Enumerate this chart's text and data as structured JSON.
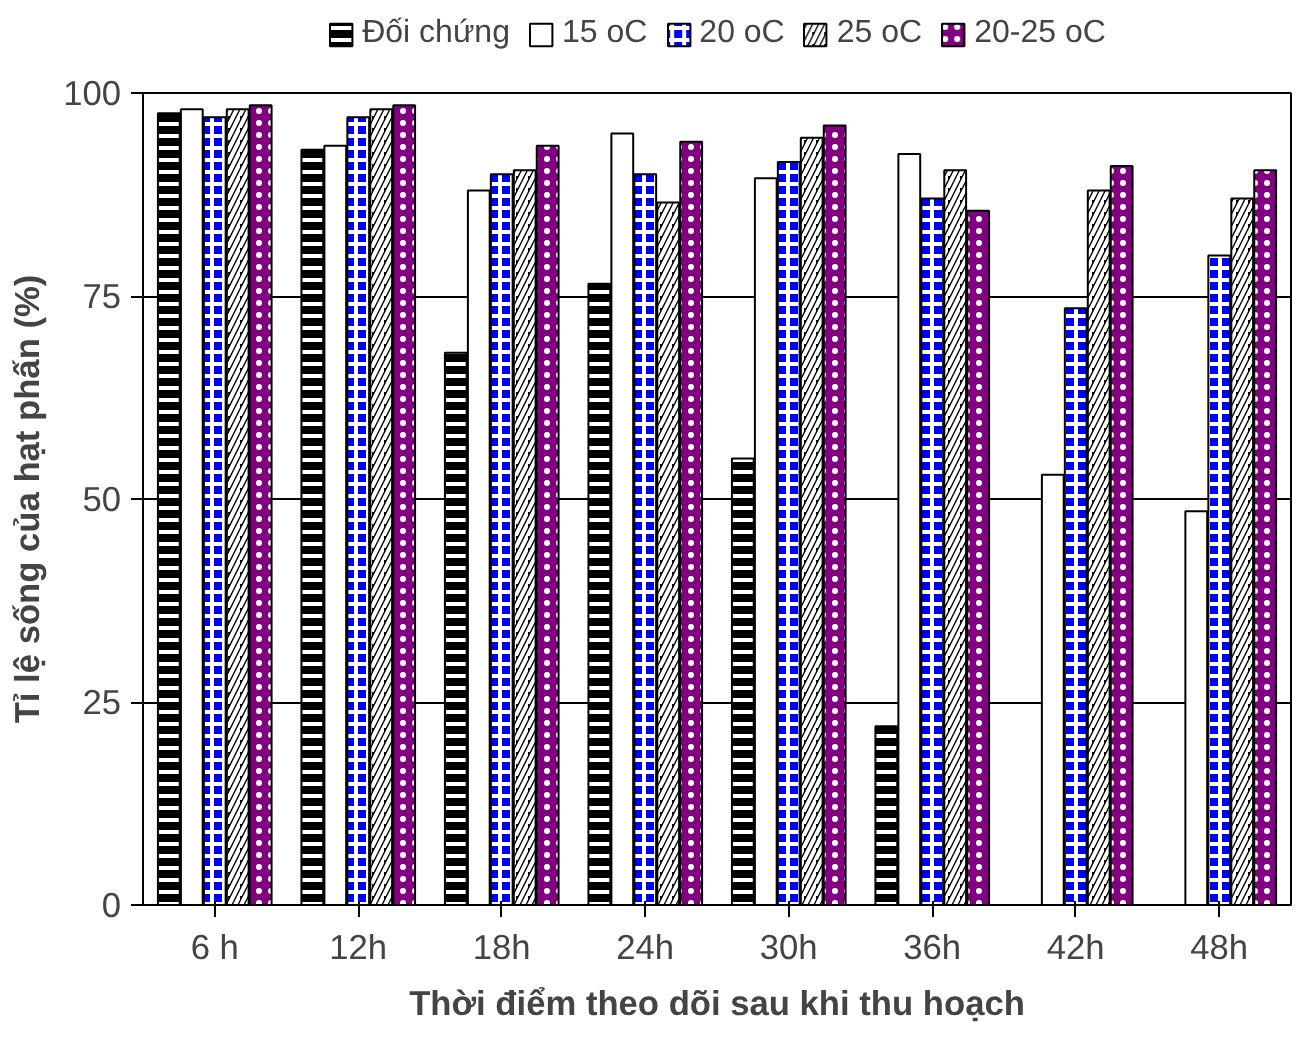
{
  "chart_data": {
    "type": "bar",
    "xlabel": "Thời điểm theo dõi sau khi thu hoạch",
    "ylabel": "Tỉ lệ sống của hạt phấn (%)",
    "categories": [
      "6 h",
      "12h",
      "18h",
      "24h",
      "30h",
      "36h",
      "42h",
      "48h"
    ],
    "series": [
      {
        "name": "Đối chứng",
        "color": "#000000",
        "values": [
          97.5,
          93,
          68,
          76.5,
          55,
          22,
          null,
          null
        ]
      },
      {
        "name": "15 oC",
        "color": "#ffffff",
        "values": [
          98,
          93.5,
          88,
          95,
          89.5,
          92.5,
          53,
          48.5
        ]
      },
      {
        "name": "20 oC",
        "color": "#0000ff",
        "values": [
          97,
          97,
          90,
          90,
          91.5,
          87,
          73.5,
          80
        ]
      },
      {
        "name": "25 oC",
        "color": "#000000",
        "values": [
          98,
          98,
          90.5,
          86.5,
          94.5,
          90.5,
          88,
          87
        ]
      },
      {
        "name": "20-25 oC",
        "color": "#800080",
        "values": [
          98.5,
          98.5,
          93.5,
          94,
          96,
          85.5,
          91,
          90.5
        ]
      }
    ],
    "ylim": [
      0,
      100
    ],
    "yticks": [
      0,
      25,
      50,
      75,
      100
    ],
    "grid": "y",
    "legend": "top"
  }
}
